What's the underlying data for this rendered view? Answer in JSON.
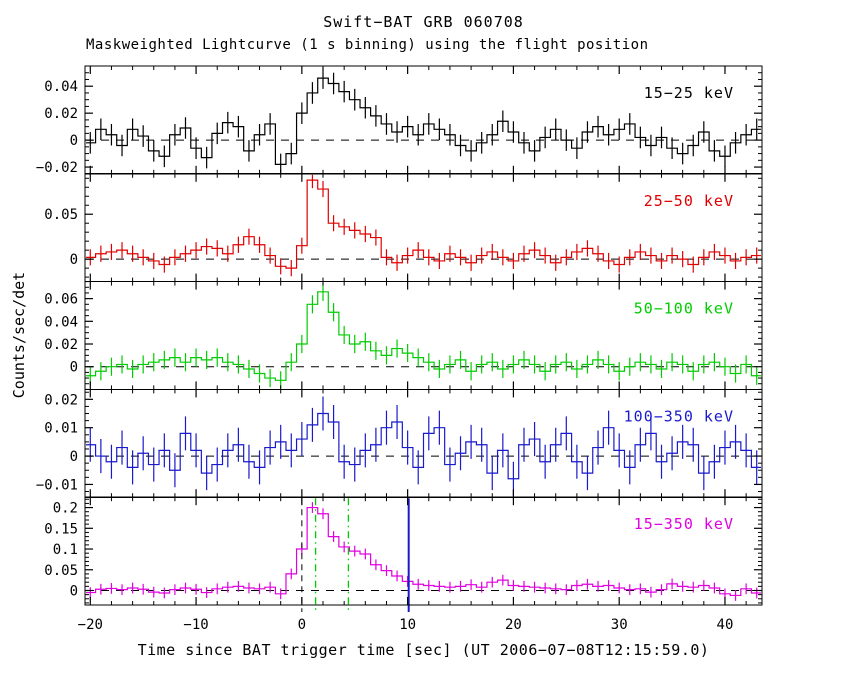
{
  "figure": {
    "title": "Swift−BAT GRB 060708",
    "subtitle": "Maskweighted Lightcurve (1 s binning) using the flight position",
    "xlabel": "Time since BAT trigger time [sec] (UT 2006−07−08T12:15:59.0)",
    "ylabel": "Counts/sec/det"
  },
  "chart_data": {
    "type": "line",
    "subtype": "step-histogram-with-errorbars",
    "title": "Swift−BAT GRB 060708",
    "x_start": -20.5,
    "bin_width": 1,
    "n_bins": 64,
    "x_range": [
      -20.5,
      43.5
    ],
    "x_ticks": [
      -20,
      -10,
      0,
      10,
      20,
      30,
      40
    ],
    "x_minor_step": 2,
    "grid": false,
    "zero_line": {
      "style": "dashed",
      "color": "#000000"
    },
    "panels": [
      {
        "label": "15−25 keV",
        "color": "#000000",
        "ylim": [
          -0.025,
          0.055
        ],
        "yticks": [
          -0.02,
          0,
          0.02,
          0.04
        ],
        "minor_step": 0.005,
        "err": 0.008,
        "values": [
          -0.002,
          0.008,
          0.004,
          -0.004,
          0.008,
          0.003,
          -0.008,
          -0.012,
          0.004,
          0.009,
          -0.006,
          -0.013,
          0.005,
          0.013,
          0.01,
          -0.008,
          0.004,
          0.012,
          -0.018,
          -0.01,
          0.02,
          0.035,
          0.046,
          0.042,
          0.036,
          0.03,
          0.024,
          0.018,
          0.012,
          0.006,
          0.01,
          0.004,
          0.012,
          0.008,
          0.004,
          -0.004,
          -0.008,
          -0.002,
          0.004,
          0.014,
          0.006,
          -0.002,
          -0.008,
          0.002,
          0.008,
          0.0,
          -0.006,
          0.006,
          0.01,
          0.004,
          0.008,
          0.012,
          0.002,
          -0.004,
          0.002,
          -0.006,
          -0.01,
          -0.004,
          0.006,
          -0.008,
          -0.012,
          -0.002,
          0.004,
          0.008
        ]
      },
      {
        "label": "25−50 keV",
        "color": "#e00000",
        "ylim": [
          -0.025,
          0.095
        ],
        "yticks": [
          0,
          0.05
        ],
        "minor_step": 0.01,
        "err": 0.009,
        "values": [
          0.002,
          0.006,
          0.008,
          0.01,
          0.006,
          0.002,
          -0.002,
          -0.006,
          0.002,
          0.006,
          0.01,
          0.014,
          0.012,
          0.006,
          0.016,
          0.025,
          0.016,
          0.004,
          -0.008,
          -0.01,
          0.015,
          0.088,
          0.078,
          0.04,
          0.036,
          0.032,
          0.028,
          0.024,
          0.002,
          -0.004,
          0.004,
          0.01,
          0.002,
          -0.002,
          0.006,
          0.002,
          -0.004,
          0.004,
          0.008,
          0.002,
          -0.002,
          0.006,
          0.01,
          0.004,
          -0.004,
          0.002,
          0.008,
          0.012,
          0.006,
          -0.002,
          -0.006,
          0.002,
          0.008,
          0.004,
          -0.002,
          0.004,
          0.0,
          -0.006,
          0.002,
          0.008,
          0.004,
          -0.002,
          0.002,
          0.004
        ]
      },
      {
        "label": "50−100 keV",
        "color": "#00cc00",
        "ylim": [
          -0.02,
          0.075
        ],
        "yticks": [
          0,
          0.02,
          0.04,
          0.06
        ],
        "minor_step": 0.005,
        "err": 0.008,
        "values": [
          -0.008,
          -0.004,
          0.0,
          0.002,
          -0.002,
          0.002,
          0.004,
          0.006,
          0.008,
          0.004,
          0.008,
          0.006,
          0.008,
          0.004,
          0.002,
          -0.002,
          -0.006,
          -0.01,
          -0.012,
          0.004,
          0.02,
          0.055,
          0.066,
          0.048,
          0.028,
          0.02,
          0.022,
          0.014,
          0.01,
          0.016,
          0.012,
          0.008,
          0.004,
          -0.002,
          0.002,
          0.006,
          -0.004,
          0.002,
          0.004,
          -0.002,
          0.002,
          0.006,
          0.002,
          -0.004,
          0.002,
          0.004,
          -0.002,
          0.002,
          0.006,
          0.002,
          -0.004,
          0.0,
          0.004,
          0.002,
          -0.002,
          0.004,
          0.002,
          -0.004,
          0.002,
          0.004,
          0.0,
          -0.006,
          0.002,
          -0.008
        ]
      },
      {
        "label": "100−350 keV",
        "color": "#1a1acc",
        "ylim": [
          -0.0145,
          0.0235
        ],
        "yticks": [
          -0.01,
          0,
          0.01,
          0.02
        ],
        "minor_step": 0.0025,
        "err": 0.006,
        "values": [
          0.004,
          0.0,
          -0.002,
          0.003,
          -0.004,
          0.001,
          -0.003,
          0.002,
          -0.005,
          0.008,
          0.002,
          -0.006,
          -0.003,
          0.002,
          0.004,
          -0.002,
          -0.004,
          0.003,
          0.005,
          0.002,
          0.006,
          0.011,
          0.015,
          0.012,
          -0.002,
          -0.003,
          0.002,
          0.004,
          0.01,
          0.012,
          0.003,
          -0.004,
          0.008,
          0.01,
          -0.003,
          0.001,
          0.005,
          0.004,
          -0.006,
          0.002,
          -0.008,
          0.004,
          0.006,
          -0.002,
          0.004,
          0.008,
          -0.002,
          -0.006,
          0.003,
          0.01,
          0.002,
          -0.004,
          0.004,
          0.008,
          -0.002,
          0.001,
          0.005,
          0.004,
          -0.006,
          -0.002,
          0.003,
          0.005,
          0.002,
          -0.004
        ]
      },
      {
        "label": "15−350 keV",
        "color": "#e000e0",
        "ylim": [
          -0.035,
          0.225
        ],
        "yticks": [
          0,
          0.05,
          0.1,
          0.15,
          0.2
        ],
        "minor_step": 0.01,
        "err": 0.013,
        "values": [
          -0.005,
          0.003,
          0.005,
          0.002,
          0.006,
          0.003,
          -0.004,
          -0.006,
          0.002,
          0.006,
          0.003,
          -0.005,
          0.004,
          0.008,
          0.01,
          0.006,
          0.004,
          0.008,
          -0.008,
          0.04,
          0.1,
          0.2,
          0.185,
          0.13,
          0.105,
          0.095,
          0.088,
          0.062,
          0.048,
          0.035,
          0.022,
          0.015,
          0.012,
          0.01,
          0.008,
          0.01,
          0.014,
          0.008,
          0.02,
          0.025,
          0.012,
          0.01,
          0.008,
          0.006,
          0.004,
          0.002,
          0.012,
          0.015,
          0.01,
          0.012,
          0.006,
          0.002,
          0.004,
          -0.004,
          0.002,
          0.016,
          0.01,
          0.008,
          0.012,
          0.006,
          -0.008,
          -0.012,
          0.004,
          -0.006
        ],
        "vlines": [
          {
            "t": 0.0,
            "color": "#000000",
            "style": "dashed",
            "width": 1
          },
          {
            "t": 1.3,
            "color": "#00cc00",
            "style": "dashdot",
            "width": 1.3
          },
          {
            "t": 4.4,
            "color": "#00cc00",
            "style": "dashdot",
            "width": 1.3
          },
          {
            "t": 10.1,
            "color": "#1a1acc",
            "style": "solid",
            "width": 2
          }
        ]
      }
    ]
  }
}
